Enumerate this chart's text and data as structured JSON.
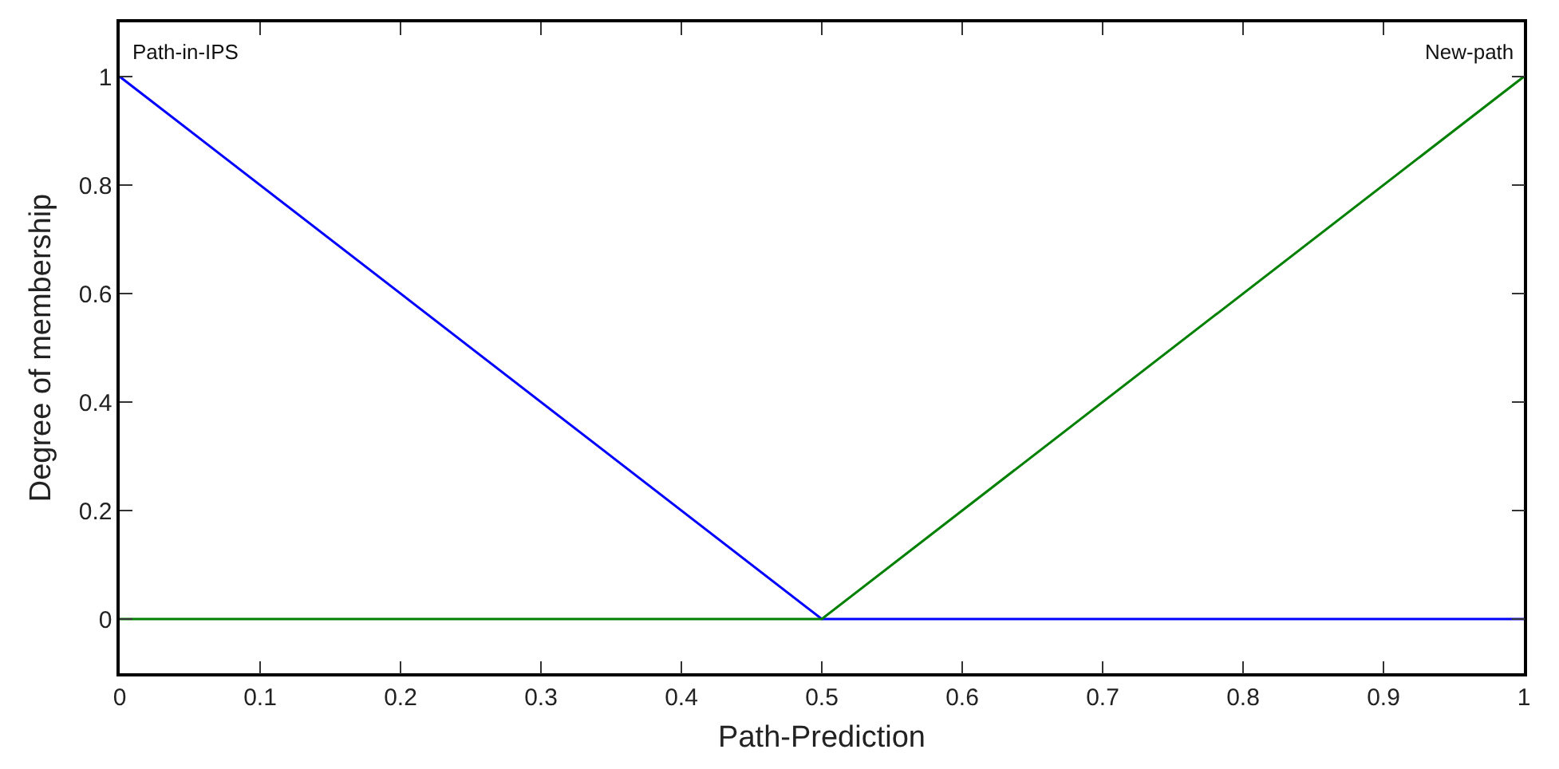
{
  "chart_data": {
    "type": "line",
    "xlabel": "Path-Prediction",
    "ylabel": "Degree of membership",
    "series": [
      {
        "color": "#0000ff",
        "x": [
          0,
          0.5,
          1
        ],
        "values": [
          1,
          0,
          0
        ]
      },
      {
        "color": "#008000",
        "x": [
          0,
          0.5,
          1
        ],
        "values": [
          0,
          0,
          1
        ]
      }
    ],
    "annotations": [
      {
        "text": "Path-in-IPS",
        "x": 0,
        "y": 1
      },
      {
        "text": "New-path",
        "x": 1,
        "y": 1
      }
    ],
    "xlim": [
      0,
      1
    ],
    "xticks": [
      0,
      0.1,
      0.2,
      0.3,
      0.4,
      0.5,
      0.6,
      0.7,
      0.8,
      0.9,
      1
    ],
    "ylim": [
      -0.1,
      1.1
    ],
    "yticks": [
      0,
      0.2,
      0.4,
      0.6,
      0.8,
      1
    ],
    "marker": "none",
    "line_style": "solid"
  }
}
